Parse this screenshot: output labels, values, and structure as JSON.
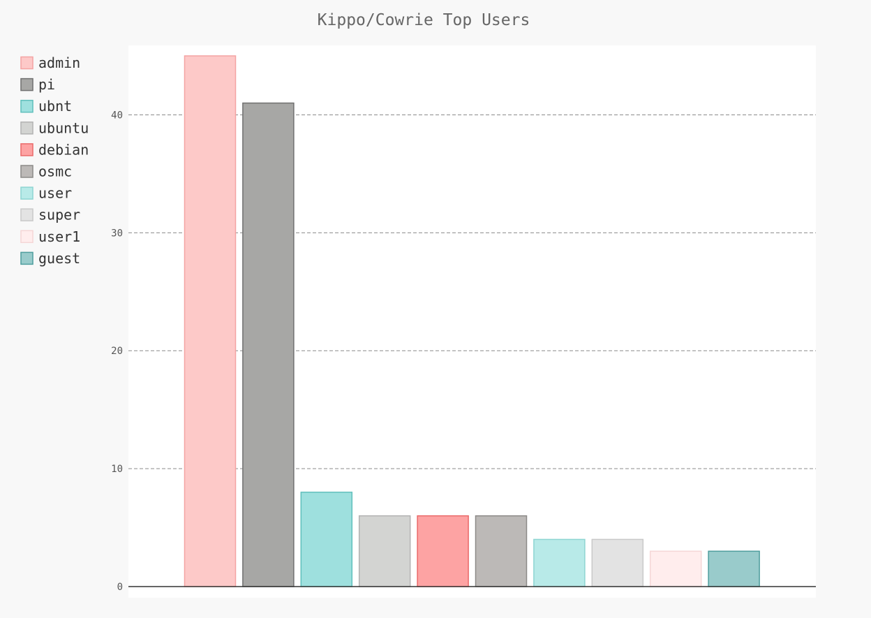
{
  "chart_data": {
    "type": "bar",
    "title": "Kippo/Cowrie Top Users",
    "xlabel": "",
    "ylabel": "",
    "ylim": [
      0,
      45
    ],
    "yticks": [
      0,
      10,
      20,
      30,
      40
    ],
    "grid": true,
    "legend_position": "left",
    "series": [
      {
        "name": "admin",
        "value": 45,
        "fill": "#fdc9c8",
        "stroke": "#f4a3a3"
      },
      {
        "name": "pi",
        "value": 41,
        "fill": "#a7a7a5",
        "stroke": "#707070"
      },
      {
        "name": "ubnt",
        "value": 8,
        "fill": "#9ee0de",
        "stroke": "#5fbfbc"
      },
      {
        "name": "ubuntu",
        "value": 6,
        "fill": "#d3d4d2",
        "stroke": "#b3b3b3"
      },
      {
        "name": "debian",
        "value": 6,
        "fill": "#fda3a3",
        "stroke": "#ea6a6a"
      },
      {
        "name": "osmc",
        "value": 6,
        "fill": "#bcb9b7",
        "stroke": "#8c8a88"
      },
      {
        "name": "user",
        "value": 4,
        "fill": "#b8eae8",
        "stroke": "#8ed5d2"
      },
      {
        "name": "super",
        "value": 4,
        "fill": "#e3e3e3",
        "stroke": "#c9c9c9"
      },
      {
        "name": "user1",
        "value": 3,
        "fill": "#ffeded",
        "stroke": "#f5d6d6"
      },
      {
        "name": "guest",
        "value": 3,
        "fill": "#99cbcb",
        "stroke": "#4f9e9e"
      }
    ]
  }
}
